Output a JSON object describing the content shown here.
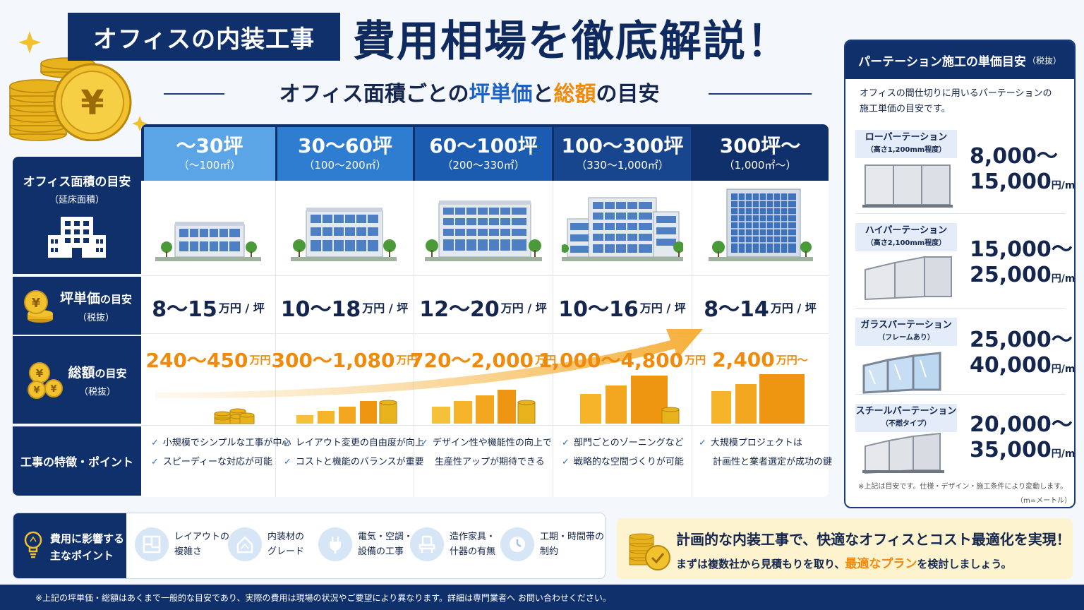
{
  "header": {
    "badge": "オフィスの内装工事",
    "title": "費用相場を徹底解説！"
  },
  "subtitle": {
    "pre": "オフィス面積ごとの",
    "blue": "坪単価",
    "mid": "と",
    "orange": "総額",
    "post": "の目安"
  },
  "row_labels": {
    "area_title": "オフィス面積の目安",
    "area_sub": "（延床面積）",
    "rate_title1": "坪単価",
    "rate_title2": "の目安",
    "rate_sub": "（税抜）",
    "total_title1": "総額",
    "total_title2": "の目安",
    "total_sub": "（税抜）",
    "feature_title": "工事の特徴・ポイント"
  },
  "columns": [
    {
      "range": "〜30坪",
      "sqm": "（〜100㎡）",
      "rate": "8〜15",
      "rate_unit": "万円 / 坪",
      "total": "240〜450",
      "total_unit": "万円",
      "features": [
        "小規模でシンプルな工事が中心",
        "スピーディーな対応が可能"
      ],
      "header_color": "#5ba4e6"
    },
    {
      "range": "30〜60坪",
      "sqm": "（100〜200㎡）",
      "rate": "10〜18",
      "rate_unit": "万円 / 坪",
      "total": "300〜1,080",
      "total_unit": "万円",
      "features": [
        "レイアウト変更の自由度が向上",
        "コストと機能のバランスが重要"
      ],
      "header_color": "#2f7dd0"
    },
    {
      "range": "60〜100坪",
      "sqm": "（200〜330㎡）",
      "rate": "12〜20",
      "rate_unit": "万円 / 坪",
      "total": "720〜2,000",
      "total_unit": "万円",
      "features": [
        "デザイン性や機能性の向上で",
        "生産性アップが期待できる"
      ],
      "header_color": "#1b5cb0"
    },
    {
      "range": "100〜300坪",
      "sqm": "（330〜1,000㎡）",
      "rate": "10〜16",
      "rate_unit": "万円 / 坪",
      "total": "1,000〜4,800",
      "total_unit": "万円",
      "features": [
        "部門ごとのゾーニングなど",
        "戦略的な空間づくりが可能"
      ],
      "header_color": "#17468f"
    },
    {
      "range": "300坪〜",
      "sqm": "（1,000㎡〜）",
      "rate": "8〜14",
      "rate_unit": "万円 / 坪",
      "total": "2,400",
      "total_unit": "万円〜",
      "features": [
        "大規模プロジェクトは",
        "計画性と業者選定が成功の鍵"
      ],
      "header_color": "#10306b"
    }
  ],
  "partition": {
    "title": "パーテーション施工の単価目安",
    "title_suffix": "（税抜）",
    "desc1": "オフィスの間仕切りに用いるパーテーションの",
    "desc2": "施工単価の目安です。",
    "items": [
      {
        "name": "ローパーテーション",
        "sub": "（高さ1,200mm程度）",
        "price1": "8,000〜",
        "price2": "15,000",
        "unit": "円/m"
      },
      {
        "name": "ハイパーテーション",
        "sub": "（高さ2,100mm程度）",
        "price1": "15,000〜",
        "price2": "25,000",
        "unit": "円/m"
      },
      {
        "name": "ガラスパーテーション",
        "sub": "（フレームあり）",
        "price1": "25,000〜",
        "price2": "40,000",
        "unit": "円/m"
      },
      {
        "name": "スチールパーテーション",
        "sub": "（不燃タイプ）",
        "price1": "20,000〜",
        "price2": "35,000",
        "unit": "円/m"
      }
    ],
    "note1": "※上記は目安です。仕様・デザイン・施工条件により変動します。",
    "note2": "（m=メートル）"
  },
  "factors": {
    "title1": "費用に影響する",
    "title2": "主なポイント",
    "items": [
      {
        "l1": "レイアウトの",
        "l2": "複雑さ",
        "icon": "layout-icon"
      },
      {
        "l1": "内装材の",
        "l2": "グレード",
        "icon": "material-icon"
      },
      {
        "l1": "電気・空調・",
        "l2": "設備の工事",
        "icon": "plug-icon"
      },
      {
        "l1": "造作家具・",
        "l2": "什器の有無",
        "icon": "chair-icon"
      },
      {
        "l1": "工期・時間帯の",
        "l2": "制約",
        "icon": "clock-icon"
      }
    ]
  },
  "cta": {
    "line1": "計画的な内装工事で、快適なオフィスとコスト最適化を実現！",
    "line2_pre": "まずは複数社から見積もりを取り、",
    "line2_hl": "最適なプラン",
    "line2_post": "を検討しましょう。"
  },
  "footer": "※上記の坪単価・総額はあくまで一般的な目安であり、実際の費用は現場の状況やご要望により異なります。詳細は専門業者へ お問い合わせください。",
  "colors": {
    "navy": "#10306b",
    "orange": "#ef8a0a",
    "blue_accent": "#1c62c4",
    "panel_bg": "#ffffff"
  }
}
